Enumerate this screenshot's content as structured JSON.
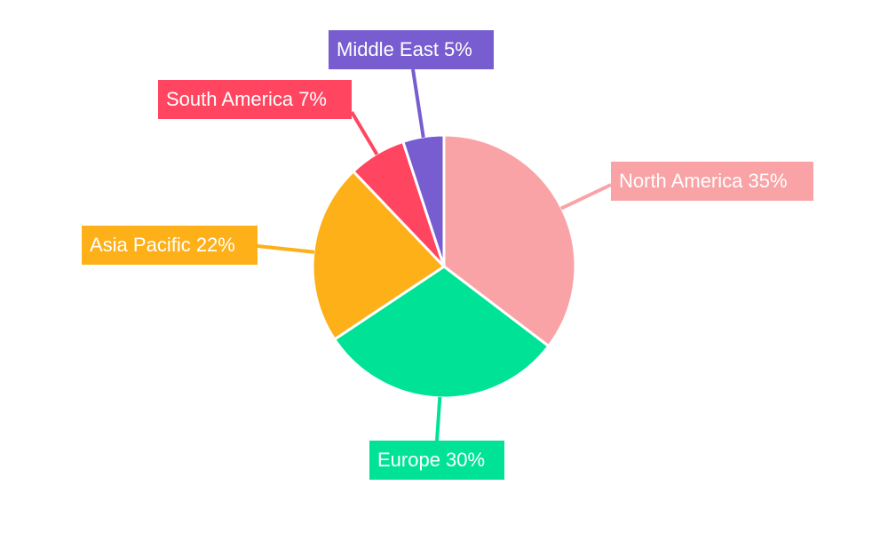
{
  "chart_data": {
    "type": "pie",
    "title": "",
    "categories": [
      "North America",
      "Europe",
      "Asia Pacific",
      "South America",
      "Middle East"
    ],
    "values": [
      35,
      30,
      22,
      7,
      5
    ],
    "unit": "%",
    "colors": [
      "#F9A3A6",
      "#00E396",
      "#FEB019",
      "#FF4560",
      "#775DD0"
    ],
    "labels": [
      "North America 35%",
      "Europe 30%",
      "Asia Pacific 22%",
      "South America 7%",
      "Middle East 5%"
    ],
    "start_angle": "top",
    "direction": "clockwise",
    "legend": "none"
  }
}
